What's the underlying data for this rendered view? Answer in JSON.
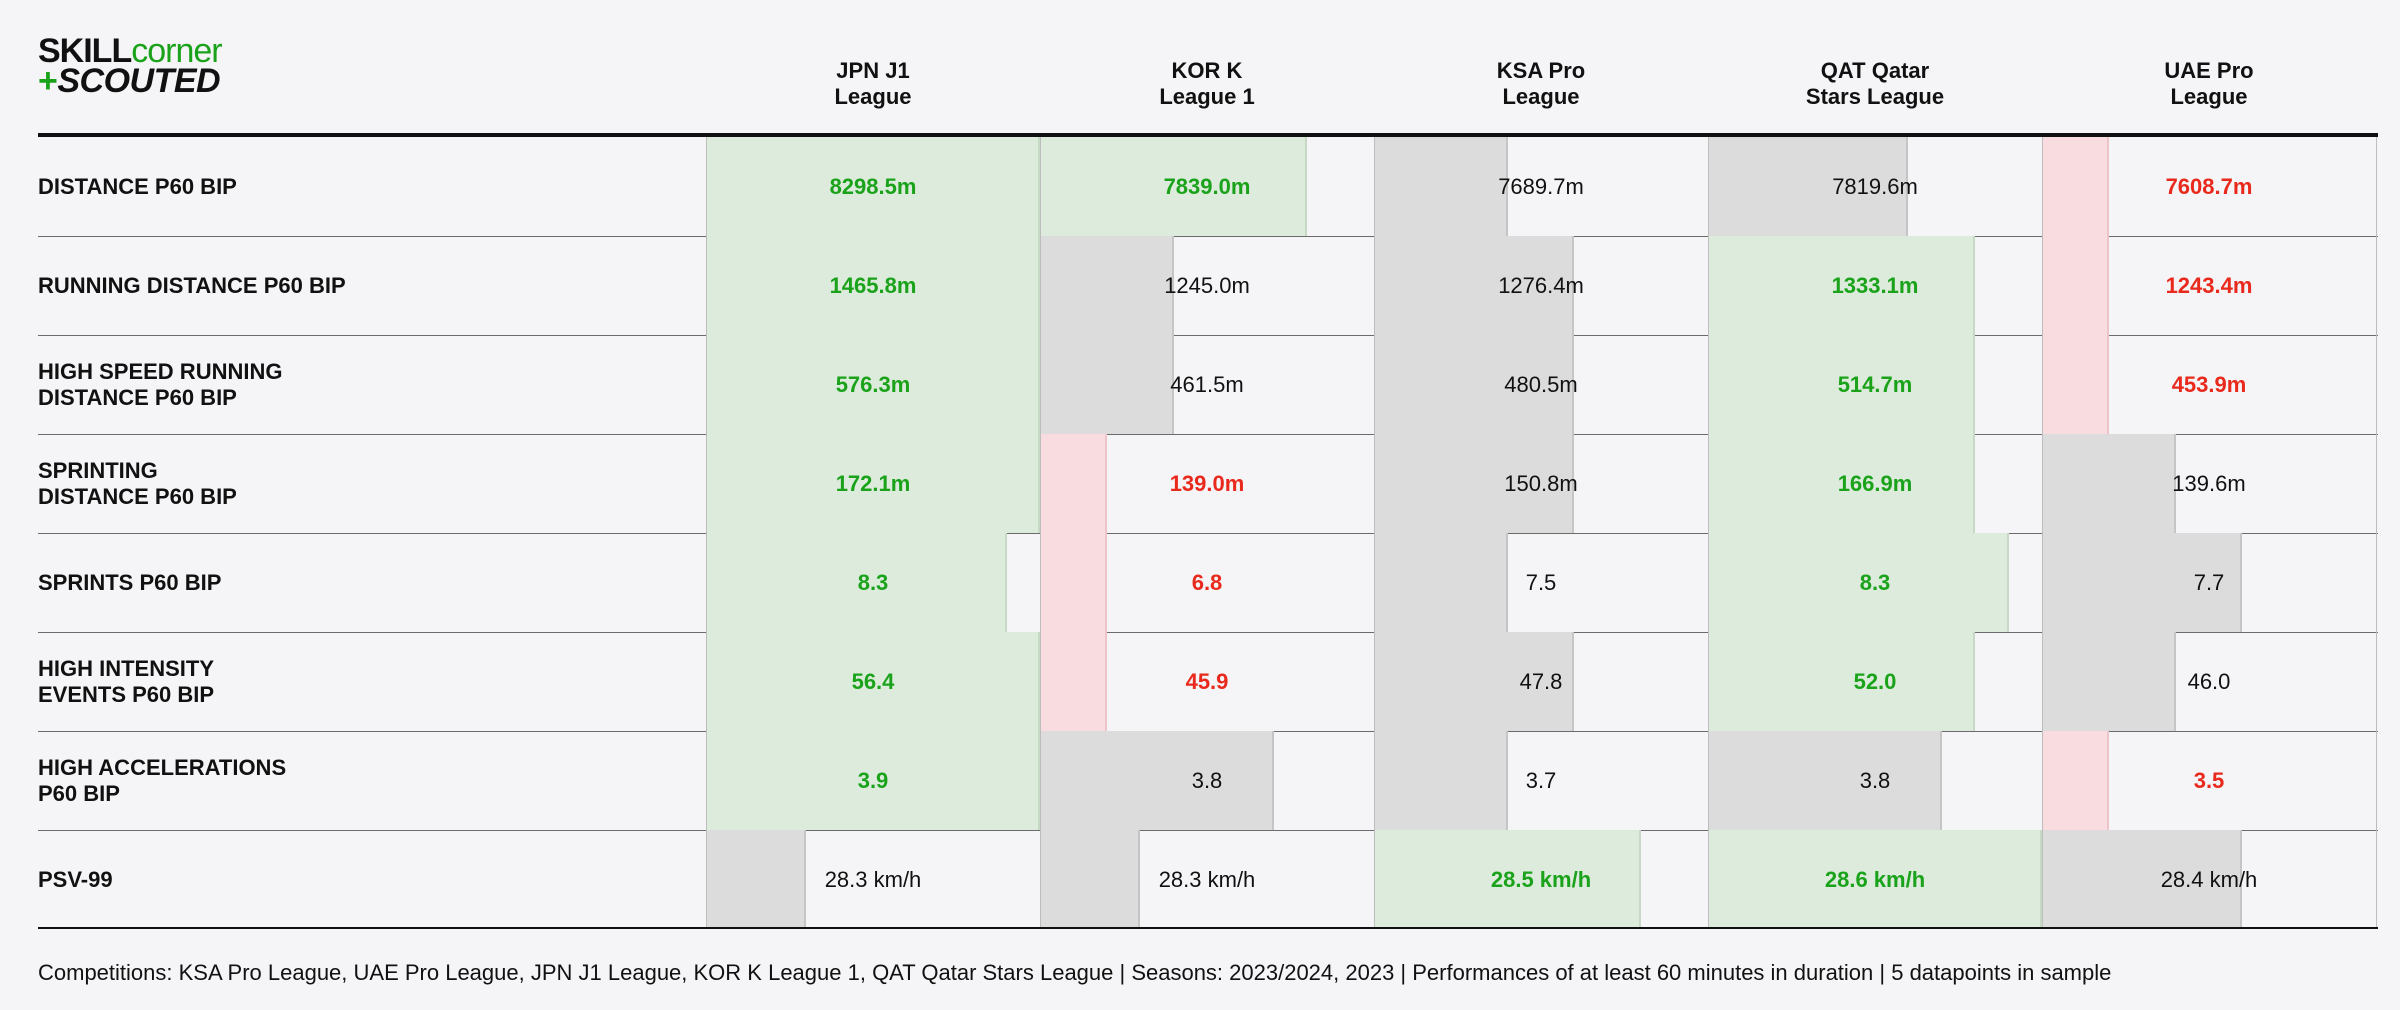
{
  "logo": {
    "line1_a": "SKILL",
    "line1_b": "corner",
    "line2_plus": "+",
    "line2_b": "SCOUTED"
  },
  "chart_data": {
    "type": "table",
    "columns": [
      {
        "line1": "JPN J1",
        "line2": "League"
      },
      {
        "line1": "KOR K",
        "line2": "League 1"
      },
      {
        "line1": "KSA Pro",
        "line2": "League"
      },
      {
        "line1": "QAT Qatar",
        "line2": "Stars League"
      },
      {
        "line1": "UAE Pro",
        "line2": "League"
      }
    ],
    "rows": [
      {
        "label": [
          "DISTANCE P60 BIP"
        ],
        "cells": [
          {
            "text": "8298.5m",
            "value": 8298.5,
            "status": "good",
            "fill": 1.0
          },
          {
            "text": "7839.0m",
            "value": 7839.0,
            "status": "good",
            "fill": 0.8
          },
          {
            "text": "7689.7m",
            "value": 7689.7,
            "status": "neutral",
            "fill": 0.4
          },
          {
            "text": "7819.6m",
            "value": 7819.6,
            "status": "neutral",
            "fill": 0.6
          },
          {
            "text": "7608.7m",
            "value": 7608.7,
            "status": "bad",
            "fill": 0.2
          }
        ]
      },
      {
        "label": [
          "RUNNING DISTANCE P60 BIP"
        ],
        "cells": [
          {
            "text": "1465.8m",
            "value": 1465.8,
            "status": "good",
            "fill": 1.0
          },
          {
            "text": "1245.0m",
            "value": 1245.0,
            "status": "neutral",
            "fill": 0.4
          },
          {
            "text": "1276.4m",
            "value": 1276.4,
            "status": "neutral",
            "fill": 0.6
          },
          {
            "text": "1333.1m",
            "value": 1333.1,
            "status": "good",
            "fill": 0.8
          },
          {
            "text": "1243.4m",
            "value": 1243.4,
            "status": "bad",
            "fill": 0.2
          }
        ]
      },
      {
        "label": [
          "HIGH SPEED RUNNING",
          "DISTANCE P60 BIP"
        ],
        "cells": [
          {
            "text": "576.3m",
            "value": 576.3,
            "status": "good",
            "fill": 1.0
          },
          {
            "text": "461.5m",
            "value": 461.5,
            "status": "neutral",
            "fill": 0.4
          },
          {
            "text": "480.5m",
            "value": 480.5,
            "status": "neutral",
            "fill": 0.6
          },
          {
            "text": "514.7m",
            "value": 514.7,
            "status": "good",
            "fill": 0.8
          },
          {
            "text": "453.9m",
            "value": 453.9,
            "status": "bad",
            "fill": 0.2
          }
        ]
      },
      {
        "label": [
          "SPRINTING",
          "DISTANCE P60 BIP"
        ],
        "cells": [
          {
            "text": "172.1m",
            "value": 172.1,
            "status": "good",
            "fill": 1.0
          },
          {
            "text": "139.0m",
            "value": 139.0,
            "status": "bad",
            "fill": 0.2
          },
          {
            "text": "150.8m",
            "value": 150.8,
            "status": "neutral",
            "fill": 0.6
          },
          {
            "text": "166.9m",
            "value": 166.9,
            "status": "good",
            "fill": 0.8
          },
          {
            "text": "139.6m",
            "value": 139.6,
            "status": "neutral",
            "fill": 0.4
          }
        ]
      },
      {
        "label": [
          "SPRINTS P60 BIP"
        ],
        "cells": [
          {
            "text": "8.3",
            "value": 8.3,
            "status": "good",
            "fill": 0.9
          },
          {
            "text": "6.8",
            "value": 6.8,
            "status": "bad",
            "fill": 0.2
          },
          {
            "text": "7.5",
            "value": 7.5,
            "status": "neutral",
            "fill": 0.4
          },
          {
            "text": "8.3",
            "value": 8.3,
            "status": "good",
            "fill": 0.9
          },
          {
            "text": "7.7",
            "value": 7.7,
            "status": "neutral",
            "fill": 0.6
          }
        ]
      },
      {
        "label": [
          "HIGH INTENSITY",
          "EVENTS P60 BIP"
        ],
        "cells": [
          {
            "text": "56.4",
            "value": 56.4,
            "status": "good",
            "fill": 1.0
          },
          {
            "text": "45.9",
            "value": 45.9,
            "status": "bad",
            "fill": 0.2
          },
          {
            "text": "47.8",
            "value": 47.8,
            "status": "neutral",
            "fill": 0.6
          },
          {
            "text": "52.0",
            "value": 52.0,
            "status": "good",
            "fill": 0.8
          },
          {
            "text": "46.0",
            "value": 46.0,
            "status": "neutral",
            "fill": 0.4
          }
        ]
      },
      {
        "label": [
          "HIGH ACCELERATIONS",
          "P60 BIP"
        ],
        "cells": [
          {
            "text": "3.9",
            "value": 3.9,
            "status": "good",
            "fill": 1.0
          },
          {
            "text": "3.8",
            "value": 3.8,
            "status": "neutral",
            "fill": 0.7
          },
          {
            "text": "3.7",
            "value": 3.7,
            "status": "neutral",
            "fill": 0.4
          },
          {
            "text": "3.8",
            "value": 3.8,
            "status": "neutral",
            "fill": 0.7
          },
          {
            "text": "3.5",
            "value": 3.5,
            "status": "bad",
            "fill": 0.2
          }
        ]
      },
      {
        "label": [
          "PSV-99"
        ],
        "cells": [
          {
            "text": "28.3 km/h",
            "value": 28.3,
            "status": "neutral",
            "fill": 0.3
          },
          {
            "text": "28.3 km/h",
            "value": 28.3,
            "status": "neutral",
            "fill": 0.3
          },
          {
            "text": "28.5 km/h",
            "value": 28.5,
            "status": "good",
            "fill": 0.8
          },
          {
            "text": "28.6 km/h",
            "value": 28.6,
            "status": "good",
            "fill": 1.0
          },
          {
            "text": "28.4 km/h",
            "value": 28.4,
            "status": "neutral",
            "fill": 0.6
          }
        ]
      }
    ],
    "colors": {
      "good_text": "#1aa31a",
      "bad_text": "#e8291c",
      "good_fill": "#ddebdc",
      "bad_fill": "#f8dcdf",
      "neutral_fill": "#dcdcdc"
    }
  },
  "footnote": "Competitions: KSA Pro League, UAE Pro League, JPN J1 League, KOR K League 1, QAT Qatar Stars League | Seasons: 2023/2024, 2023 | Performances of at least 60 minutes in duration | 5 datapoints in sample"
}
